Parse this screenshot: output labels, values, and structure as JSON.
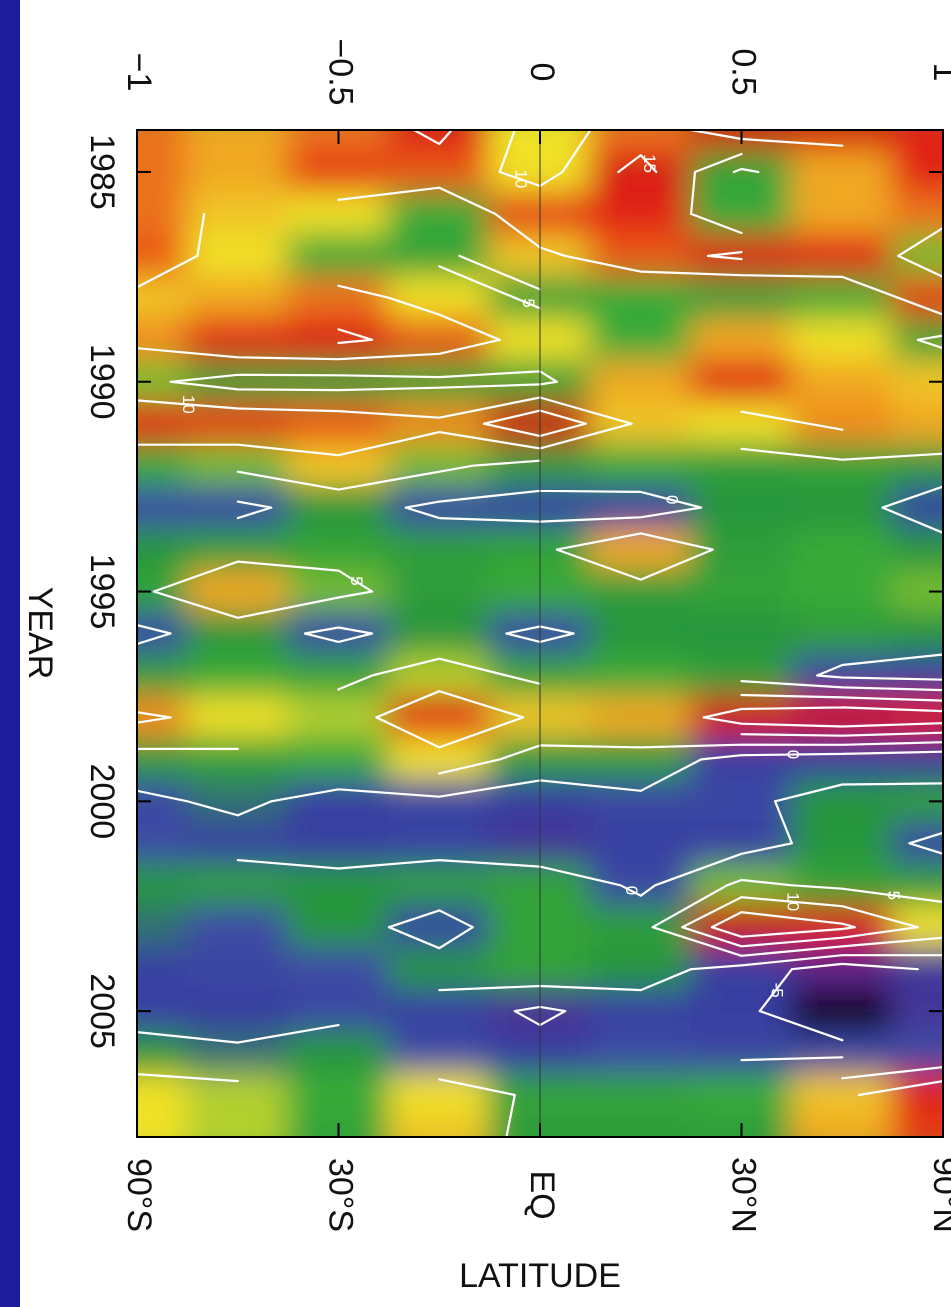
{
  "chart_data": {
    "type": "heatmap",
    "x_title": "LATITUDE",
    "y_title": "YEAR",
    "x": [
      -1,
      -0.75,
      -0.5,
      -0.25,
      0,
      0.25,
      0.5,
      0.75,
      1
    ],
    "y": [
      1984,
      1985,
      1986,
      1987,
      1988,
      1989,
      1990,
      1991,
      1992,
      1993,
      1994,
      1995,
      1996,
      1997,
      1998,
      1999,
      2000,
      2001,
      2002,
      2003,
      2004,
      2005,
      2006,
      2007,
      2008
    ],
    "z": [
      [
        12,
        10,
        12,
        16,
        8,
        12,
        18,
        18,
        15
      ],
      [
        12,
        10,
        14,
        13,
        8,
        17,
        4,
        10,
        15
      ],
      [
        12,
        9,
        8,
        5,
        14,
        15,
        5,
        10,
        12
      ],
      [
        13,
        8,
        5,
        4,
        9,
        13,
        16,
        15,
        6
      ],
      [
        9,
        10,
        12,
        8,
        4,
        5,
        3,
        5,
        14
      ],
      [
        11,
        15,
        16,
        13,
        8,
        5,
        10,
        8,
        4
      ],
      [
        6,
        3,
        3,
        4,
        4,
        10,
        15,
        10,
        9
      ],
      [
        15,
        14,
        13,
        11,
        20,
        9,
        8,
        11,
        10
      ],
      [
        5,
        6,
        9,
        6,
        3,
        5,
        3,
        4,
        3
      ],
      [
        0,
        -1,
        2,
        -1,
        -2,
        -3,
        2,
        2,
        -3
      ],
      [
        2,
        3,
        4,
        3,
        4,
        10,
        3,
        5,
        2
      ],
      [
        4,
        10,
        6,
        3,
        5,
        3,
        4,
        5,
        6
      ],
      [
        -1,
        2,
        -1,
        2,
        -1,
        2,
        2,
        3,
        2
      ],
      [
        3,
        5,
        4,
        7,
        4,
        5,
        3,
        -1,
        -2
      ],
      [
        11,
        8,
        7,
        15,
        9,
        10,
        18,
        20,
        18
      ],
      [
        3,
        4,
        5,
        8,
        3,
        3,
        -2,
        -3,
        -4
      ],
      [
        -1,
        1,
        -2,
        -1,
        -3,
        -1,
        -1,
        2,
        3
      ],
      [
        0,
        -2,
        -3,
        -2,
        -5,
        -2,
        -2,
        2,
        -1
      ],
      [
        2,
        3,
        2,
        3,
        4,
        -1,
        6,
        4,
        3
      ],
      [
        1,
        0,
        2,
        -2,
        4,
        3,
        20,
        16,
        8
      ],
      [
        -2,
        -1,
        0,
        2,
        4,
        2,
        -2,
        -8,
        -4
      ],
      [
        -2,
        -3,
        -1,
        -2,
        -6,
        -2,
        -3,
        -14,
        -5
      ],
      [
        2,
        1,
        2,
        0,
        -3,
        0,
        -1,
        -1,
        0
      ],
      [
        8,
        7,
        5,
        8,
        4,
        4,
        5,
        9,
        15
      ],
      [
        8,
        7,
        4,
        9,
        3,
        3,
        3,
        10,
        14
      ]
    ],
    "contour_levels": [
      -5,
      0,
      5,
      10,
      15,
      20
    ],
    "xlim": [
      -1,
      1
    ],
    "xticks": [
      {
        "value": -1,
        "label": "−1"
      },
      {
        "value": -0.5,
        "label": "−0.5"
      },
      0,
      0.5,
      1
    ],
    "x2ticks": [
      {
        "value": -1,
        "label": "90°S"
      },
      {
        "value": -0.5,
        "label": "30°S"
      },
      {
        "value": 0,
        "label": "EQ"
      },
      {
        "value": 0.5,
        "label": "30°N"
      },
      {
        "value": 1,
        "label": "90°N"
      }
    ],
    "ylim": [
      1984,
      2008
    ],
    "yticks": [
      1985,
      1990,
      1995,
      2000,
      2005
    ]
  }
}
